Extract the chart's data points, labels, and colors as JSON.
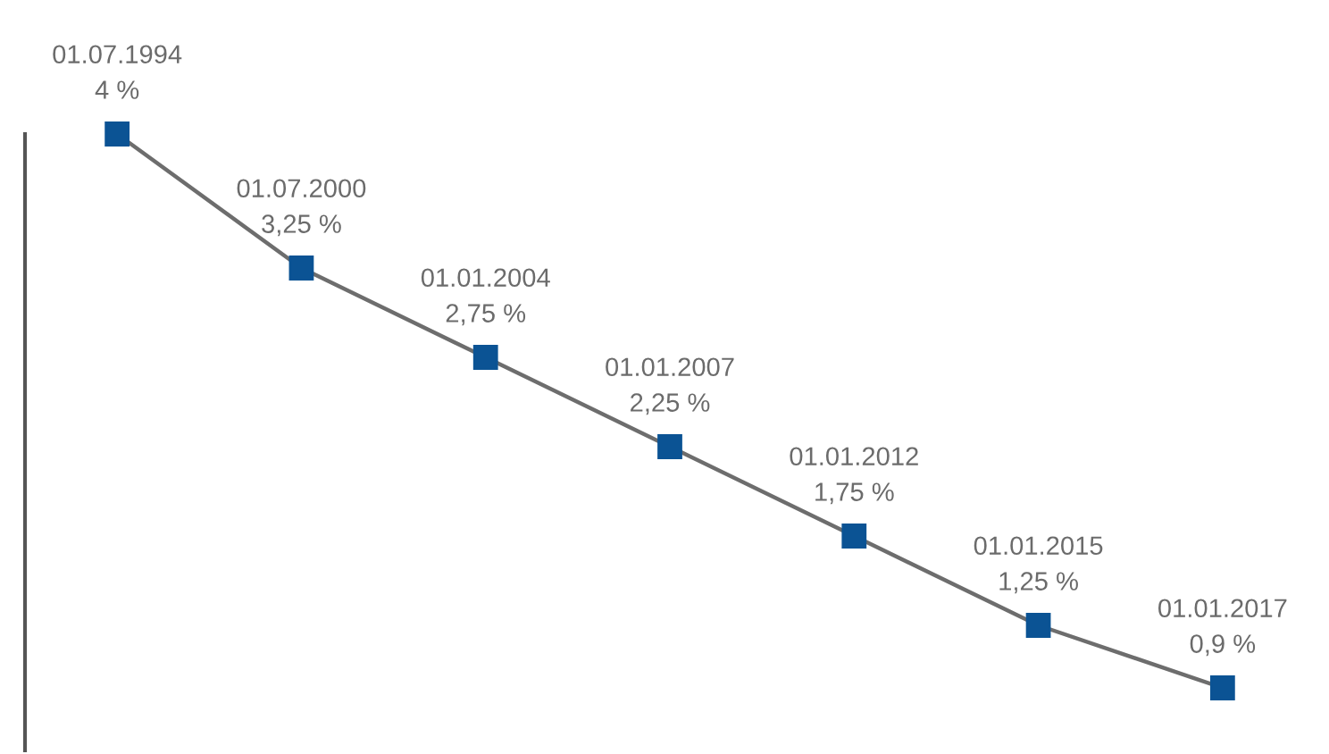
{
  "chart_data": {
    "type": "line",
    "categories": [
      null,
      null,
      null,
      null,
      null,
      null,
      null
    ],
    "series": [
      {
        "color": "#6d6d6d",
        "colors": [
          "#0b5394",
          "#0b5394",
          "#0b5394",
          "#0b5394",
          "#0b5394",
          "#0b5394",
          "#0b5394"
        ],
        "values": [
          4,
          3.25,
          2.75,
          2.25,
          1.75,
          1.25,
          0.9
        ],
        "value_labels": [
          "01.07.1994\n4 %",
          "01.07.2000\n3,25 %",
          "01.01.2004\n2,75 %",
          "01.01.2007\n2,25 %",
          "01.01.2012\n1,75 %",
          "01.01.2015\n1,25 %",
          "01.01.2017\n0,9 %"
        ]
      }
    ],
    "marker": "square",
    "line_style": "solid",
    "ylim": [
      0.55,
      4
    ]
  }
}
